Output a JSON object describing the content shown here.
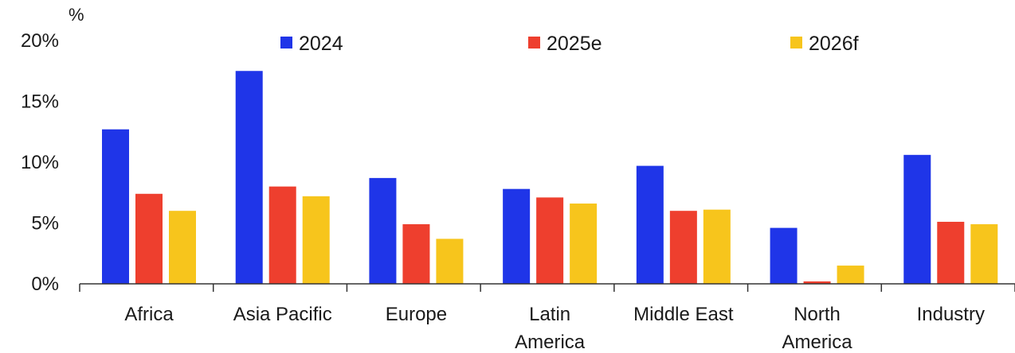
{
  "chart_data": {
    "type": "bar",
    "ylabel": "%",
    "ylim": [
      0,
      20
    ],
    "yticks": [
      0,
      5,
      10,
      15,
      20
    ],
    "ytick_labels": [
      "0%",
      "5%",
      "10%",
      "15%",
      "20%"
    ],
    "grid": false,
    "legend_position": "top",
    "categories": [
      [
        "Africa"
      ],
      [
        "Asia Pacific"
      ],
      [
        "Europe"
      ],
      [
        "Latin",
        "America"
      ],
      [
        "Middle East"
      ],
      [
        "North",
        "America"
      ],
      [
        "Industry"
      ]
    ],
    "series": [
      {
        "name": "2024",
        "color": "#1f35e8",
        "values": [
          12.7,
          17.5,
          8.7,
          7.8,
          9.7,
          4.6,
          10.6
        ]
      },
      {
        "name": "2025e",
        "color": "#ee3f2e",
        "values": [
          7.4,
          8.0,
          4.9,
          7.1,
          6.0,
          0.2,
          5.1
        ]
      },
      {
        "name": "2026f",
        "color": "#f7c51c",
        "values": [
          6.0,
          7.2,
          3.7,
          6.6,
          6.1,
          1.5,
          4.9
        ]
      }
    ]
  }
}
